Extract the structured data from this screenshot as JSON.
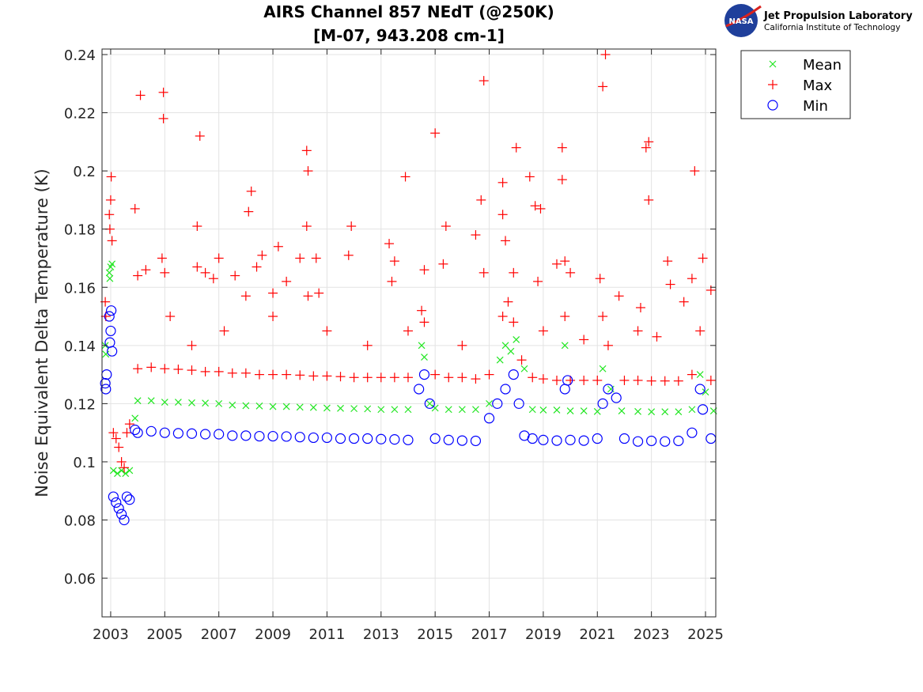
{
  "chart_data": {
    "type": "scatter",
    "title": "AIRS Channel 857 NEdT (@250K)",
    "subtitle": "[M-07, 943.208 cm-1]",
    "xlabel": "",
    "ylabel": "Noise Equivalent Delta Temperature (K)",
    "xlim": [
      2002.68,
      2025.38
    ],
    "ylim": [
      0.0467,
      0.2419
    ],
    "xticks": [
      2003,
      2005,
      2007,
      2009,
      2011,
      2013,
      2015,
      2017,
      2019,
      2021,
      2023,
      2025
    ],
    "xtick_labels": [
      "2003",
      "2005",
      "2007",
      "2009",
      "2011",
      "2013",
      "2015",
      "2017",
      "2019",
      "2021",
      "2023",
      "2025"
    ],
    "yticks": [
      0.06,
      0.08,
      0.1,
      0.12,
      0.14,
      0.16,
      0.18,
      0.2,
      0.22,
      0.24
    ],
    "ytick_labels": [
      "0.06",
      "0.08",
      "0.1",
      "0.12",
      "0.14",
      "0.16",
      "0.18",
      "0.2",
      "0.22",
      "0.24"
    ],
    "grid": true,
    "legend_position": "outside-top-right",
    "series": [
      {
        "name": "Mean",
        "marker": "x",
        "color": "#22e622",
        "points": [
          [
            2002.8,
            0.14
          ],
          [
            2002.82,
            0.137
          ],
          [
            2002.95,
            0.165
          ],
          [
            2003.0,
            0.167
          ],
          [
            2002.97,
            0.163
          ],
          [
            2003.05,
            0.168
          ],
          [
            2003.1,
            0.097
          ],
          [
            2003.25,
            0.096
          ],
          [
            2003.4,
            0.097
          ],
          [
            2003.55,
            0.096
          ],
          [
            2003.7,
            0.097
          ],
          [
            2003.9,
            0.115
          ],
          [
            2004.0,
            0.121
          ],
          [
            2004.5,
            0.121
          ],
          [
            2005.0,
            0.1205
          ],
          [
            2005.5,
            0.1205
          ],
          [
            2006.0,
            0.1203
          ],
          [
            2006.5,
            0.1202
          ],
          [
            2007.0,
            0.12
          ],
          [
            2007.5,
            0.1195
          ],
          [
            2008.0,
            0.1193
          ],
          [
            2008.5,
            0.1192
          ],
          [
            2009.0,
            0.119
          ],
          [
            2009.5,
            0.119
          ],
          [
            2010.0,
            0.1188
          ],
          [
            2010.5,
            0.1187
          ],
          [
            2011.0,
            0.1185
          ],
          [
            2011.5,
            0.1184
          ],
          [
            2012.0,
            0.1183
          ],
          [
            2012.5,
            0.1182
          ],
          [
            2013.0,
            0.118
          ],
          [
            2013.5,
            0.118
          ],
          [
            2014.0,
            0.118
          ],
          [
            2014.5,
            0.14
          ],
          [
            2014.6,
            0.136
          ],
          [
            2014.8,
            0.12
          ],
          [
            2015.0,
            0.1185
          ],
          [
            2015.5,
            0.118
          ],
          [
            2016.0,
            0.118
          ],
          [
            2016.5,
            0.118
          ],
          [
            2017.0,
            0.12
          ],
          [
            2017.4,
            0.135
          ],
          [
            2017.6,
            0.14
          ],
          [
            2017.8,
            0.138
          ],
          [
            2018.0,
            0.142
          ],
          [
            2018.3,
            0.132
          ],
          [
            2018.6,
            0.118
          ],
          [
            2019.0,
            0.1178
          ],
          [
            2019.5,
            0.1178
          ],
          [
            2019.8,
            0.14
          ],
          [
            2020.0,
            0.1175
          ],
          [
            2020.5,
            0.1175
          ],
          [
            2021.0,
            0.1173
          ],
          [
            2021.2,
            0.132
          ],
          [
            2021.5,
            0.125
          ],
          [
            2021.9,
            0.1175
          ],
          [
            2022.5,
            0.1173
          ],
          [
            2023.0,
            0.1172
          ],
          [
            2023.5,
            0.1172
          ],
          [
            2024.0,
            0.1172
          ],
          [
            2024.5,
            0.118
          ],
          [
            2024.8,
            0.13
          ],
          [
            2025.0,
            0.124
          ],
          [
            2025.3,
            0.1175
          ]
        ]
      },
      {
        "name": "Max",
        "marker": "+",
        "color": "#ff0000",
        "points": [
          [
            2002.8,
            0.155
          ],
          [
            2002.82,
            0.15
          ],
          [
            2002.95,
            0.185
          ],
          [
            2003.0,
            0.19
          ],
          [
            2002.97,
            0.18
          ],
          [
            2003.02,
            0.198
          ],
          [
            2003.05,
            0.176
          ],
          [
            2003.1,
            0.11
          ],
          [
            2003.2,
            0.108
          ],
          [
            2003.3,
            0.105
          ],
          [
            2003.4,
            0.1
          ],
          [
            2003.5,
            0.098
          ],
          [
            2003.6,
            0.11
          ],
          [
            2003.7,
            0.113
          ],
          [
            2004.0,
            0.132
          ],
          [
            2004.5,
            0.1325
          ],
          [
            2005.0,
            0.132
          ],
          [
            2005.5,
            0.1318
          ],
          [
            2006.0,
            0.1315
          ],
          [
            2006.5,
            0.131
          ],
          [
            2007.0,
            0.131
          ],
          [
            2007.5,
            0.1305
          ],
          [
            2008.0,
            0.1305
          ],
          [
            2008.5,
            0.13
          ],
          [
            2009.0,
            0.13
          ],
          [
            2009.5,
            0.13
          ],
          [
            2010.0,
            0.1298
          ],
          [
            2010.5,
            0.1295
          ],
          [
            2011.0,
            0.1295
          ],
          [
            2011.5,
            0.1293
          ],
          [
            2012.0,
            0.129
          ],
          [
            2012.5,
            0.129
          ],
          [
            2013.0,
            0.129
          ],
          [
            2013.5,
            0.129
          ],
          [
            2014.0,
            0.129
          ],
          [
            2014.5,
            0.152
          ],
          [
            2014.6,
            0.148
          ],
          [
            2015.0,
            0.13
          ],
          [
            2015.5,
            0.129
          ],
          [
            2016.0,
            0.129
          ],
          [
            2016.5,
            0.1285
          ],
          [
            2017.0,
            0.13
          ],
          [
            2017.5,
            0.15
          ],
          [
            2017.7,
            0.155
          ],
          [
            2017.9,
            0.148
          ],
          [
            2018.2,
            0.135
          ],
          [
            2018.6,
            0.129
          ],
          [
            2019.0,
            0.1285
          ],
          [
            2019.5,
            0.128
          ],
          [
            2019.8,
            0.15
          ],
          [
            2020.0,
            0.128
          ],
          [
            2020.5,
            0.128
          ],
          [
            2021.0,
            0.128
          ],
          [
            2021.2,
            0.15
          ],
          [
            2021.4,
            0.14
          ],
          [
            2022.0,
            0.128
          ],
          [
            2022.5,
            0.128
          ],
          [
            2023.0,
            0.1278
          ],
          [
            2023.5,
            0.1278
          ],
          [
            2024.0,
            0.1278
          ],
          [
            2024.5,
            0.13
          ],
          [
            2024.8,
            0.145
          ],
          [
            2025.2,
            0.128
          ],
          [
            2003.9,
            0.187
          ],
          [
            2004.1,
            0.226
          ],
          [
            2004.95,
            0.227
          ],
          [
            2004.95,
            0.218
          ],
          [
            2006.3,
            0.212
          ],
          [
            2006.2,
            0.181
          ],
          [
            2008.2,
            0.193
          ],
          [
            2008.1,
            0.186
          ],
          [
            2010.25,
            0.207
          ],
          [
            2010.3,
            0.2
          ],
          [
            2010.25,
            0.181
          ],
          [
            2011.9,
            0.181
          ],
          [
            2013.9,
            0.198
          ],
          [
            2015.0,
            0.213
          ],
          [
            2015.4,
            0.181
          ],
          [
            2016.8,
            0.231
          ],
          [
            2016.7,
            0.19
          ],
          [
            2017.5,
            0.196
          ],
          [
            2017.5,
            0.185
          ],
          [
            2018.0,
            0.208
          ],
          [
            2018.5,
            0.198
          ],
          [
            2018.7,
            0.188
          ],
          [
            2018.9,
            0.187
          ],
          [
            2019.7,
            0.208
          ],
          [
            2019.7,
            0.197
          ],
          [
            2021.2,
            0.229
          ],
          [
            2021.3,
            0.24
          ],
          [
            2022.8,
            0.208
          ],
          [
            2022.9,
            0.21
          ],
          [
            2022.9,
            0.19
          ],
          [
            2024.6,
            0.2
          ],
          [
            2004.0,
            0.164
          ],
          [
            2004.3,
            0.166
          ],
          [
            2004.9,
            0.17
          ],
          [
            2005.0,
            0.165
          ],
          [
            2006.2,
            0.167
          ],
          [
            2006.5,
            0.165
          ],
          [
            2006.8,
            0.163
          ],
          [
            2007.0,
            0.17
          ],
          [
            2007.6,
            0.164
          ],
          [
            2008.0,
            0.157
          ],
          [
            2008.4,
            0.167
          ],
          [
            2008.6,
            0.171
          ],
          [
            2009.0,
            0.158
          ],
          [
            2009.2,
            0.174
          ],
          [
            2009.5,
            0.162
          ],
          [
            2010.0,
            0.17
          ],
          [
            2010.3,
            0.157
          ],
          [
            2010.6,
            0.17
          ],
          [
            2010.7,
            0.158
          ],
          [
            2011.8,
            0.171
          ],
          [
            2013.3,
            0.175
          ],
          [
            2013.4,
            0.162
          ],
          [
            2013.5,
            0.169
          ],
          [
            2014.6,
            0.166
          ],
          [
            2015.3,
            0.168
          ],
          [
            2016.5,
            0.178
          ],
          [
            2016.8,
            0.165
          ],
          [
            2017.6,
            0.176
          ],
          [
            2017.9,
            0.165
          ],
          [
            2018.8,
            0.162
          ],
          [
            2019.5,
            0.168
          ],
          [
            2019.8,
            0.169
          ],
          [
            2020.0,
            0.165
          ],
          [
            2021.1,
            0.163
          ],
          [
            2021.8,
            0.157
          ],
          [
            2022.6,
            0.153
          ],
          [
            2023.6,
            0.169
          ],
          [
            2023.7,
            0.161
          ],
          [
            2024.2,
            0.155
          ],
          [
            2024.5,
            0.163
          ],
          [
            2024.9,
            0.17
          ],
          [
            2025.2,
            0.159
          ],
          [
            2005.2,
            0.15
          ],
          [
            2006.0,
            0.14
          ],
          [
            2007.2,
            0.145
          ],
          [
            2009.0,
            0.15
          ],
          [
            2011.0,
            0.145
          ],
          [
            2012.5,
            0.14
          ],
          [
            2014.0,
            0.145
          ],
          [
            2016.0,
            0.14
          ],
          [
            2019.0,
            0.145
          ],
          [
            2020.5,
            0.142
          ],
          [
            2022.5,
            0.145
          ],
          [
            2023.2,
            0.143
          ]
        ]
      },
      {
        "name": "Min",
        "marker": "o",
        "color": "#0000ff",
        "points": [
          [
            2002.8,
            0.127
          ],
          [
            2002.82,
            0.125
          ],
          [
            2002.85,
            0.13
          ],
          [
            2002.95,
            0.15
          ],
          [
            2003.0,
            0.145
          ],
          [
            2002.97,
            0.141
          ],
          [
            2003.02,
            0.152
          ],
          [
            2003.05,
            0.138
          ],
          [
            2003.1,
            0.088
          ],
          [
            2003.2,
            0.086
          ],
          [
            2003.3,
            0.084
          ],
          [
            2003.4,
            0.082
          ],
          [
            2003.5,
            0.08
          ],
          [
            2003.6,
            0.088
          ],
          [
            2003.7,
            0.087
          ],
          [
            2003.9,
            0.111
          ],
          [
            2004.0,
            0.11
          ],
          [
            2004.5,
            0.1105
          ],
          [
            2005.0,
            0.11
          ],
          [
            2005.5,
            0.1098
          ],
          [
            2006.0,
            0.1097
          ],
          [
            2006.5,
            0.1095
          ],
          [
            2007.0,
            0.1095
          ],
          [
            2007.5,
            0.109
          ],
          [
            2008.0,
            0.109
          ],
          [
            2008.5,
            0.1088
          ],
          [
            2009.0,
            0.1088
          ],
          [
            2009.5,
            0.1087
          ],
          [
            2010.0,
            0.1085
          ],
          [
            2010.5,
            0.1083
          ],
          [
            2011.0,
            0.1083
          ],
          [
            2011.5,
            0.108
          ],
          [
            2012.0,
            0.108
          ],
          [
            2012.5,
            0.108
          ],
          [
            2013.0,
            0.1078
          ],
          [
            2013.5,
            0.1077
          ],
          [
            2014.0,
            0.1075
          ],
          [
            2014.4,
            0.125
          ],
          [
            2014.6,
            0.13
          ],
          [
            2014.8,
            0.12
          ],
          [
            2015.0,
            0.108
          ],
          [
            2015.5,
            0.1075
          ],
          [
            2016.0,
            0.1073
          ],
          [
            2016.5,
            0.1072
          ],
          [
            2017.0,
            0.115
          ],
          [
            2017.3,
            0.12
          ],
          [
            2017.6,
            0.125
          ],
          [
            2017.9,
            0.13
          ],
          [
            2018.1,
            0.12
          ],
          [
            2018.3,
            0.109
          ],
          [
            2018.6,
            0.108
          ],
          [
            2019.0,
            0.1075
          ],
          [
            2019.5,
            0.1073
          ],
          [
            2019.8,
            0.125
          ],
          [
            2019.9,
            0.128
          ],
          [
            2020.0,
            0.1075
          ],
          [
            2020.5,
            0.1073
          ],
          [
            2021.0,
            0.108
          ],
          [
            2021.2,
            0.12
          ],
          [
            2021.4,
            0.125
          ],
          [
            2021.7,
            0.122
          ],
          [
            2022.0,
            0.108
          ],
          [
            2022.5,
            0.107
          ],
          [
            2023.0,
            0.1072
          ],
          [
            2023.5,
            0.107
          ],
          [
            2024.0,
            0.1072
          ],
          [
            2024.5,
            0.11
          ],
          [
            2024.8,
            0.125
          ],
          [
            2024.9,
            0.118
          ],
          [
            2025.2,
            0.108
          ]
        ]
      }
    ]
  },
  "logo": {
    "org": "Jet Propulsion Laboratory",
    "sub": "California Institute of Technology",
    "badge": "NASA"
  }
}
